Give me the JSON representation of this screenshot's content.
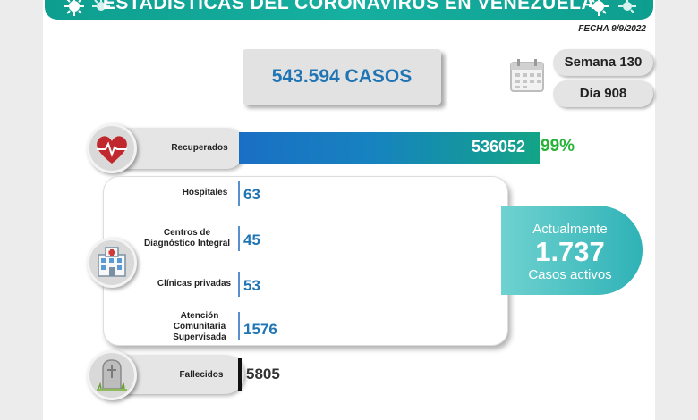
{
  "banner": {
    "title": "ESTADÍSTICAS DEL CORONAVIRUS EN VENEZUELA"
  },
  "fecha": "FECHA 9/9/2022",
  "casos": "543.594 CASOS",
  "semana": "Semana 130",
  "dia": "Día 908",
  "recuperados": {
    "label": "Recuperados",
    "value": "536052",
    "percent": "99%"
  },
  "hospitales": {
    "label": "Hospitales",
    "value": "63"
  },
  "cdi": {
    "label_line1": "Centros de",
    "label_line2": "Diagnóstico Integral",
    "value": "45"
  },
  "clinicas": {
    "label": "Clínicas privadas",
    "value": "53"
  },
  "acs": {
    "label_line1": "Atención",
    "label_line2": "Comunitaria",
    "label_line3": "Supervisada",
    "value": "1576"
  },
  "activos": {
    "line1": "Actualmente",
    "value": "1.737",
    "line3": "Casos activos"
  },
  "fallecidos": {
    "label": "Fallecidos",
    "value": "5805"
  },
  "colors": {
    "banner": "#0e9e8f",
    "accent_blue": "#1f74b4",
    "recovered_green": "#27b33a",
    "active_teal": "#2fb2b6"
  }
}
